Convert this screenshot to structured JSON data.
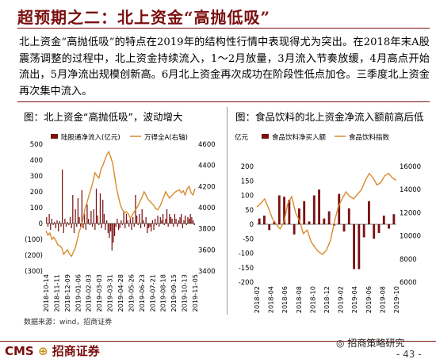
{
  "page": {
    "title": "超预期之二：北上资金“高抛低吸”",
    "paragraph": "北上资金“高抛低吸”的特点在2019年的结构性行情中表现得尤为突出。在2018年末A股震荡调整的过程中，北上资金持续流入，1～2月放量，3月流入节奏放缓，4月高点开始流出，5月净流出规模创新高。6月北上资金再次成功在阶段性低点加仓。三季度北上资金再次集中流入。",
    "source": "数据来源：wind，招商证券",
    "logo_cms": "CMS",
    "logo_name": "招商证券",
    "wechat_name": "招商策略研究",
    "page_number": "- 43 -",
    "colors": {
      "bar": "#7b1010",
      "line": "#d98a2b",
      "title": "#7b0e0e"
    }
  },
  "chart_data": [
    {
      "type": "bar+line",
      "title": "图：北上资金“高抛低吸”，波动增大",
      "series": [
        {
          "name": "陆股通净流入(亿元)",
          "type": "bar",
          "axis": "left"
        },
        {
          "name": "万得全A(右轴)",
          "type": "line",
          "axis": "right"
        }
      ],
      "x_ticks": [
        "2018-10-14",
        "2018-11-11",
        "2018-12-09",
        "2019-01-06",
        "2019-02-03",
        "2019-03-03",
        "2019-03-31",
        "2019-04-28",
        "2019-05-26",
        "2019-06-23",
        "2019-07-21",
        "2019-08-18",
        "2019-09-15",
        "2019-10-13",
        "2019-11-05"
      ],
      "ylim_left": [
        -300,
        500
      ],
      "ylim_right": [
        3400,
        4600
      ],
      "y_ticks_left": [
        "500",
        "400",
        "300",
        "200",
        "100",
        "0",
        "(100)",
        "(200)",
        "(300)"
      ],
      "y_ticks_right": [
        "4600",
        "4400",
        "4200",
        "4000",
        "3800",
        "3600",
        "3400"
      ],
      "bar_values": [
        40,
        -20,
        60,
        -40,
        30,
        -10,
        10,
        -30,
        20,
        -50,
        15,
        -20,
        340,
        -60,
        30,
        -20,
        10,
        -10,
        40,
        -30,
        180,
        -60,
        90,
        -20,
        160,
        40,
        -20,
        210,
        -30,
        60,
        -40,
        120,
        30,
        -10,
        80,
        -20,
        90,
        -40,
        220,
        50,
        -10,
        190,
        -30,
        150,
        60,
        -40,
        20,
        -60,
        -90,
        -50,
        -170,
        -120,
        -80,
        -20,
        30,
        -40,
        -30,
        20,
        -10,
        80,
        -30,
        60,
        20,
        -20,
        30,
        -40,
        40,
        -20,
        180,
        50,
        -10,
        60,
        -30,
        90,
        20,
        -20,
        40,
        -60,
        -30,
        -20,
        -50,
        20,
        -40,
        30,
        -10,
        50,
        -20,
        40,
        20,
        60,
        -10,
        30,
        90,
        -20,
        60,
        40,
        30,
        -20,
        60,
        30,
        -20,
        20,
        40,
        60,
        -30,
        20,
        50,
        -10,
        40,
        30,
        60,
        40,
        20,
        -10
      ],
      "line_values": [
        3780,
        3740,
        3760,
        3700,
        3720,
        3690,
        3650,
        3640,
        3620,
        3560,
        3580,
        3600,
        3560,
        3540,
        3580,
        3620,
        3700,
        3780,
        3820,
        3900,
        4000,
        4050,
        4120,
        4180,
        4250,
        4330,
        4300,
        4280,
        4360,
        4400,
        4450,
        4500,
        4530,
        4480,
        4420,
        4300,
        4180,
        4100,
        4020,
        3980,
        3950,
        3960,
        3940,
        3900,
        3930,
        3960,
        3990,
        4020,
        4060,
        4100,
        4150,
        4120,
        4080,
        4060,
        4040,
        4020,
        3990,
        3980,
        4010,
        4050,
        4100,
        4150,
        4120,
        4090,
        4110,
        4130,
        4150,
        4160,
        4170,
        4140,
        4160,
        4120,
        4180,
        4200,
        4140,
        4120,
        4180
      ]
    },
    {
      "type": "bar+line",
      "title": "图：食品饮料的北上资金净流入额前高后低",
      "ylabel": "亿元",
      "series": [
        {
          "name": "食品饮料净买入额",
          "type": "bar",
          "axis": "left"
        },
        {
          "name": "食品饮料指数",
          "type": "line",
          "axis": "right"
        }
      ],
      "x_ticks": [
        "2018-02",
        "2018-04",
        "2018-06",
        "2018-08",
        "2018-10",
        "2018-12",
        "2019-02",
        "2019-04",
        "2019-06",
        "2019-08",
        "2019-10"
      ],
      "ylim_left": [
        -200,
        200
      ],
      "ylim_right": [
        6000,
        16000
      ],
      "y_ticks_left": [
        "200",
        "150",
        "100",
        "50",
        "0",
        "-50",
        "-100",
        "-150",
        "-200"
      ],
      "y_ticks_right": [
        "16000",
        "14000",
        "12000",
        "10000",
        "8000",
        "6000"
      ],
      "bar_values": [
        20,
        30,
        -20,
        10,
        100,
        95,
        85,
        -35,
        55,
        80,
        10,
        100,
        120,
        20,
        45,
        -5,
        105,
        -25,
        55,
        -155,
        -155,
        -45,
        80,
        -50,
        -30,
        30,
        -15,
        35
      ],
      "line_values": [
        12500,
        12800,
        13200,
        12400,
        11500,
        11000,
        10600,
        11200,
        12800,
        13400,
        12000,
        11300,
        10200,
        10500,
        9500,
        9000,
        8600,
        8400,
        8800,
        9600,
        11200,
        12500,
        13200,
        13800,
        13400,
        13200,
        13600,
        14000,
        14800,
        15400,
        15000,
        14400,
        14600,
        15200,
        15400,
        15000,
        14800
      ]
    }
  ]
}
